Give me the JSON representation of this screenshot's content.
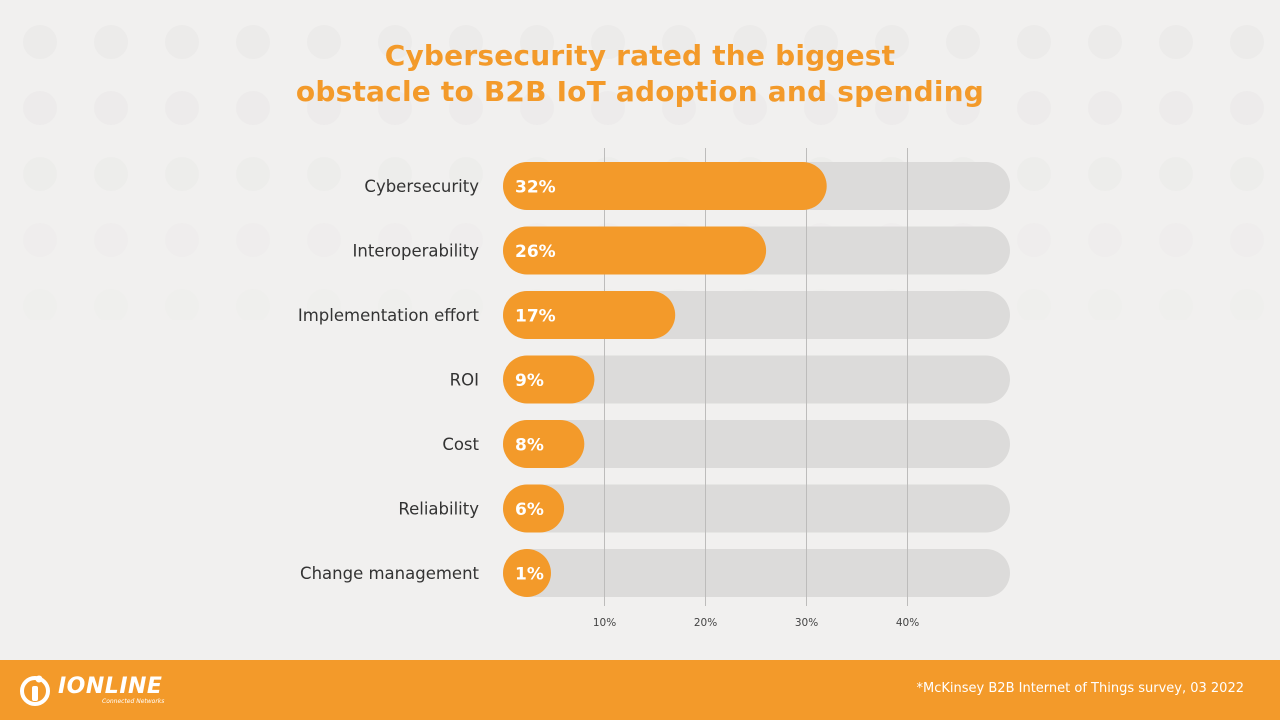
{
  "title": {
    "line1": "Cybersecurity rated the biggest",
    "line2": "obstacle to B2B IoT adoption and spending"
  },
  "colors": {
    "accent": "#f39a2a",
    "track": "#dcdbda",
    "background": "#f1f0ef",
    "label_text": "#333333",
    "grid": "#bdbcbb"
  },
  "chart_data": {
    "type": "bar",
    "orientation": "horizontal",
    "title": "Cybersecurity rated the biggest obstacle to B2B IoT adoption and spending",
    "categories": [
      "Cybersecurity",
      "Interoperability",
      "Implementation effort",
      "ROI",
      "Cost",
      "Reliability",
      "Change management"
    ],
    "values": [
      32,
      26,
      17,
      9,
      8,
      6,
      1
    ],
    "value_labels": [
      "32%",
      "26%",
      "17%",
      "9%",
      "8%",
      "6%",
      "1%"
    ],
    "unit": "%",
    "xlim": [
      0,
      50
    ],
    "xticks": [
      10,
      20,
      30,
      40
    ],
    "xtick_labels": [
      "10%",
      "20%",
      "30%",
      "40%"
    ],
    "grid": true,
    "xlabel": "",
    "ylabel": ""
  },
  "footer": {
    "brand_name": "IONLINE",
    "brand_tagline": "Connected Networks",
    "source_note": "*McKinsey B2B Internet of Things survey, 03 2022"
  }
}
